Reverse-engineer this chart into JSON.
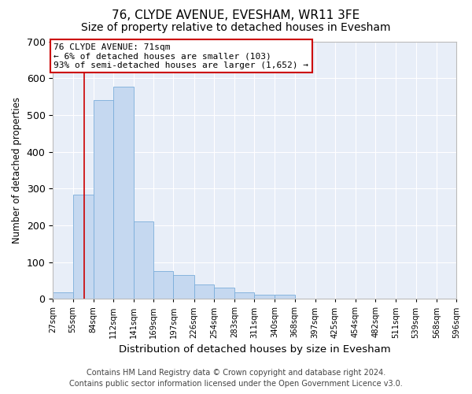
{
  "title": "76, CLYDE AVENUE, EVESHAM, WR11 3FE",
  "subtitle": "Size of property relative to detached houses in Evesham",
  "xlabel": "Distribution of detached houses by size in Evesham",
  "ylabel": "Number of detached properties",
  "footer_line1": "Contains HM Land Registry data © Crown copyright and database right 2024.",
  "footer_line2": "Contains public sector information licensed under the Open Government Licence v3.0.",
  "annotation_text": "76 CLYDE AVENUE: 71sqm\n← 6% of detached houses are smaller (103)\n93% of semi-detached houses are larger (1,652) →",
  "subject_size": 71,
  "bar_color": "#c5d8f0",
  "bar_edge_color": "#7aadda",
  "vline_color": "#cc0000",
  "annotation_box_edge": "#cc0000",
  "bins": [
    27,
    55,
    84,
    112,
    141,
    169,
    197,
    226,
    254,
    283,
    311,
    340,
    368,
    397,
    425,
    454,
    482,
    511,
    539,
    568,
    596
  ],
  "bin_labels": [
    "27sqm",
    "55sqm",
    "84sqm",
    "112sqm",
    "141sqm",
    "169sqm",
    "197sqm",
    "226sqm",
    "254sqm",
    "283sqm",
    "311sqm",
    "340sqm",
    "368sqm",
    "397sqm",
    "425sqm",
    "454sqm",
    "482sqm",
    "511sqm",
    "539sqm",
    "568sqm",
    "596sqm"
  ],
  "bar_heights": [
    18,
    283,
    540,
    577,
    210,
    75,
    65,
    40,
    30,
    18,
    12,
    12,
    0,
    0,
    0,
    0,
    0,
    0,
    0,
    0
  ],
  "ylim": [
    0,
    700
  ],
  "yticks": [
    0,
    100,
    200,
    300,
    400,
    500,
    600,
    700
  ],
  "background_color": "#e8eef8",
  "plot_bg_color": "#e8eef8",
  "title_fontsize": 11,
  "subtitle_fontsize": 10,
  "annotation_fontsize": 8,
  "footer_fontsize": 7
}
